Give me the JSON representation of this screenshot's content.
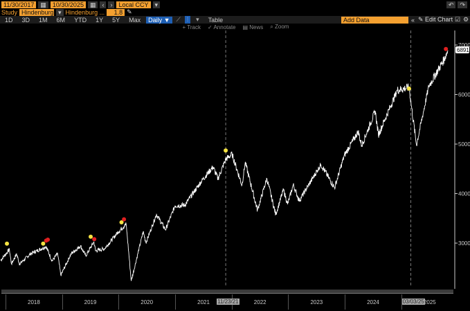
{
  "toolbar": {
    "start_date": "11/30/2017",
    "end_date": "10/30/2025",
    "currency": "Local CCY",
    "study_label": "Study",
    "study_value": "Hindenburg",
    "study_name": "Hindenburg ...",
    "study_param": "1.8",
    "periods": [
      "1D",
      "3D",
      "1M",
      "6M",
      "YTD",
      "1Y",
      "5Y",
      "Max"
    ],
    "frequency": "Daily ▼",
    "table_label": "Table",
    "add_data_placeholder": "Add Data",
    "edit_chart": "Edit Chart",
    "tools": [
      "Track",
      "Annotate",
      "News",
      "Zoom"
    ]
  },
  "chart_data": {
    "type": "line",
    "x_range": [
      "2017-11-30",
      "2025-10-30"
    ],
    "ylim": [
      2200,
      7200
    ],
    "yticks": [
      3000,
      4000,
      5000,
      6000,
      7000
    ],
    "xticks": [
      "2018",
      "2019",
      "2020",
      "2021",
      "2022",
      "2023",
      "2024",
      "2025"
    ],
    "last_value": "6891",
    "series_color": "#ffffff",
    "points": [
      [
        "2017-11-30",
        2650
      ],
      [
        "2018-01-26",
        2872
      ],
      [
        "2018-02-08",
        2580
      ],
      [
        "2018-03-13",
        2780
      ],
      [
        "2018-04-02",
        2580
      ],
      [
        "2018-06-12",
        2786
      ],
      [
        "2018-09-20",
        2930
      ],
      [
        "2018-10-29",
        2640
      ],
      [
        "2018-12-03",
        2790
      ],
      [
        "2018-12-24",
        2351
      ],
      [
        "2019-02-28",
        2784
      ],
      [
        "2019-04-30",
        2945
      ],
      [
        "2019-06-03",
        2744
      ],
      [
        "2019-07-26",
        3025
      ],
      [
        "2019-08-05",
        2844
      ],
      [
        "2019-10-02",
        2887
      ],
      [
        "2019-12-31",
        3230
      ],
      [
        "2020-02-19",
        3386
      ],
      [
        "2020-03-23",
        2237
      ],
      [
        "2020-06-08",
        3232
      ],
      [
        "2020-06-26",
        3009
      ],
      [
        "2020-09-02",
        3580
      ],
      [
        "2020-10-30",
        3270
      ],
      [
        "2020-12-31",
        3756
      ],
      [
        "2021-03-04",
        3768
      ],
      [
        "2021-06-30",
        4297
      ],
      [
        "2021-09-02",
        4537
      ],
      [
        "2021-10-04",
        4300
      ],
      [
        "2021-11-23",
        4690
      ],
      [
        "2022-01-03",
        4796
      ],
      [
        "2022-03-08",
        4170
      ],
      [
        "2022-03-29",
        4631
      ],
      [
        "2022-06-16",
        3666
      ],
      [
        "2022-08-16",
        4305
      ],
      [
        "2022-10-12",
        3577
      ],
      [
        "2022-12-01",
        4080
      ],
      [
        "2022-12-28",
        3783
      ],
      [
        "2023-02-02",
        4180
      ],
      [
        "2023-03-13",
        3855
      ],
      [
        "2023-07-31",
        4589
      ],
      [
        "2023-10-27",
        4117
      ],
      [
        "2023-12-29",
        4770
      ],
      [
        "2024-03-28",
        5254
      ],
      [
        "2024-04-19",
        4967
      ],
      [
        "2024-07-16",
        5667
      ],
      [
        "2024-08-05",
        5186
      ],
      [
        "2024-12-06",
        6090
      ],
      [
        "2025-02-19",
        6144
      ],
      [
        "2025-04-08",
        4982
      ],
      [
        "2025-06-27",
        6173
      ],
      [
        "2025-09-30",
        6688
      ],
      [
        "2025-10-28",
        6891
      ]
    ],
    "signals": [
      {
        "date": "2018-01-10",
        "value": 2990,
        "color": "#f5e342"
      },
      {
        "date": "2018-09-01",
        "value": 2990,
        "color": "#f5e342"
      },
      {
        "date": "2018-09-20",
        "value": 3050,
        "color": "#e02020"
      },
      {
        "date": "2018-10-01",
        "value": 3070,
        "color": "#e02020"
      },
      {
        "date": "2019-07-05",
        "value": 3130,
        "color": "#f5e342"
      },
      {
        "date": "2019-07-28",
        "value": 3080,
        "color": "#e02020"
      },
      {
        "date": "2020-01-20",
        "value": 3420,
        "color": "#f5e342"
      },
      {
        "date": "2020-02-05",
        "value": 3480,
        "color": "#e02020"
      },
      {
        "date": "2021-11-23",
        "value": 4870,
        "color": "#f5e342"
      },
      {
        "date": "2025-02-19",
        "value": 6120,
        "color": "#f5e342"
      },
      {
        "date": "2025-10-15",
        "value": 6920,
        "color": "#e02020"
      }
    ],
    "markers": [
      "11/23/21",
      "03/03/25"
    ]
  }
}
